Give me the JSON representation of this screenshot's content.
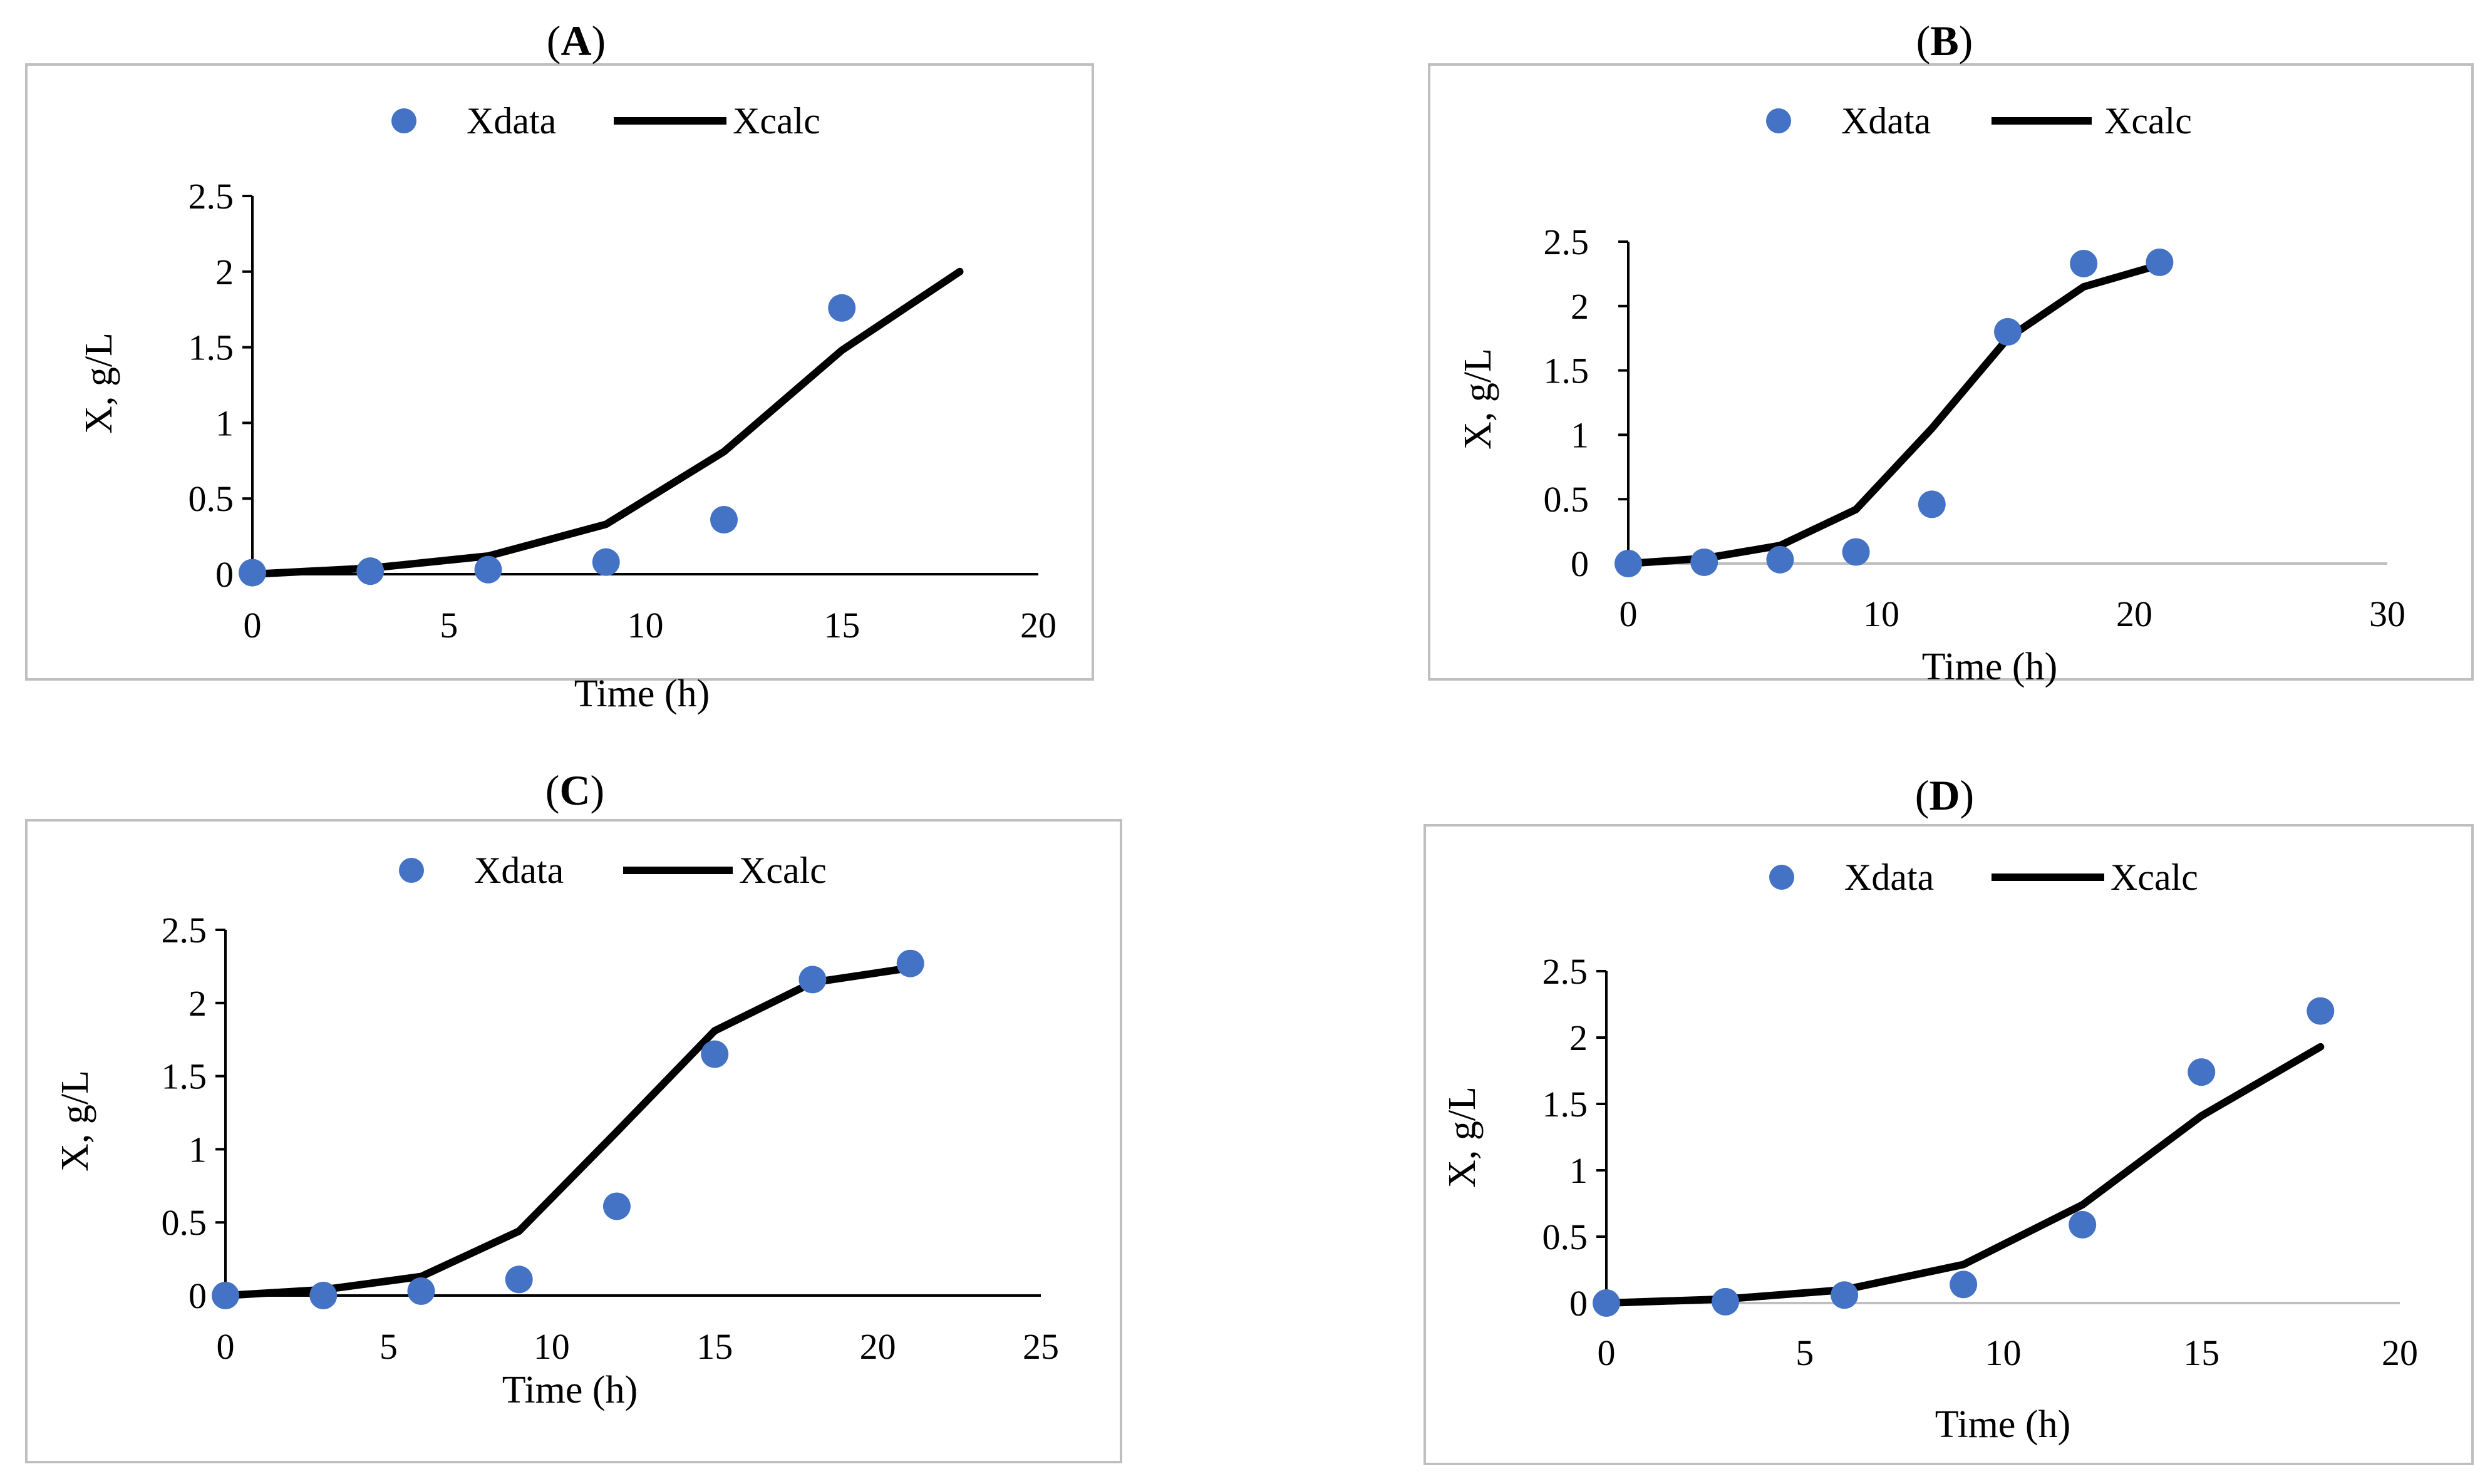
{
  "colors": {
    "data": "#4472C4",
    "calc": "#000000",
    "frame": "#bfbfbf",
    "axis": "#000000",
    "tick": "#000000",
    "text": "#000000",
    "secondary_axis": "#bfbfbf"
  },
  "chart_data": [
    {
      "panel": "A",
      "type": "line",
      "title_letter": "A",
      "legend": {
        "data": "Xdata",
        "calc": "Xcalc"
      },
      "xlabel": "Time (h)",
      "ylabel": "X, g/L",
      "xlim": [
        0,
        20
      ],
      "ylim": [
        0,
        2.5
      ],
      "xticks": [
        "0",
        "5",
        "10",
        "15",
        "20"
      ],
      "yticks": [
        "0",
        "0.5",
        "1",
        "1.5",
        "2",
        "2.5"
      ],
      "xdata": [
        0,
        3,
        6,
        9,
        12,
        15
      ],
      "ydata": [
        0.01,
        0.02,
        0.03,
        0.08,
        0.36,
        1.76
      ],
      "xcalc": [
        0,
        3,
        6,
        9,
        12,
        15,
        18
      ],
      "ycalc": [
        0.0,
        0.04,
        0.12,
        0.33,
        0.81,
        1.48,
        2.0
      ]
    },
    {
      "panel": "B",
      "type": "line",
      "title_letter": "B",
      "legend": {
        "data": "Xdata",
        "calc": "Xcalc"
      },
      "xlabel": "Time (h)",
      "ylabel": "X, g/L",
      "xlim": [
        0,
        30
      ],
      "ylim": [
        0,
        2.5
      ],
      "xticks": [
        "0",
        "10",
        "20",
        "30"
      ],
      "yticks": [
        "0",
        "0.5",
        "1",
        "1.5",
        "2",
        "2.5"
      ],
      "xdata": [
        0,
        3,
        6,
        9,
        12,
        15,
        18,
        21
      ],
      "ydata": [
        0.0,
        0.01,
        0.03,
        0.09,
        0.46,
        1.8,
        2.33,
        2.34
      ],
      "xcalc": [
        0,
        3,
        6,
        9,
        12,
        15,
        18,
        21
      ],
      "ycalc": [
        0.0,
        0.04,
        0.14,
        0.42,
        1.05,
        1.75,
        2.15,
        2.32
      ]
    },
    {
      "panel": "C",
      "type": "line",
      "title_letter": "C",
      "legend": {
        "data": "Xdata",
        "calc": "Xcalc"
      },
      "xlabel": "Time (h)",
      "ylabel": "X, g/L",
      "xlim": [
        0,
        25
      ],
      "ylim": [
        0,
        2.5
      ],
      "xticks": [
        "0",
        "5",
        "10",
        "15",
        "20",
        "25"
      ],
      "yticks": [
        "0",
        "0.5",
        "1",
        "1.5",
        "2",
        "2.5"
      ],
      "xdata": [
        0,
        3,
        6,
        9,
        12,
        15,
        18,
        21
      ],
      "ydata": [
        0.0,
        0.0,
        0.03,
        0.11,
        0.61,
        1.65,
        2.16,
        2.27
      ],
      "xcalc": [
        0,
        3,
        6,
        9,
        12,
        15,
        18,
        21
      ],
      "ycalc": [
        0.0,
        0.04,
        0.13,
        0.44,
        1.12,
        1.81,
        2.14,
        2.24
      ]
    },
    {
      "panel": "D",
      "type": "line",
      "title_letter": "D",
      "legend": {
        "data": "Xdata",
        "calc": "Xcalc"
      },
      "xlabel": "Time (h)",
      "ylabel": "X, g/L",
      "xlim": [
        0,
        20
      ],
      "ylim": [
        0,
        2.5
      ],
      "xticks": [
        "0",
        "5",
        "10",
        "15",
        "20"
      ],
      "yticks": [
        "0",
        "0.5",
        "1",
        "1.5",
        "2",
        "2.5"
      ],
      "xdata": [
        0,
        3,
        6,
        9,
        12,
        15,
        18
      ],
      "ydata": [
        0.0,
        0.01,
        0.06,
        0.14,
        0.59,
        1.74,
        2.2
      ],
      "xcalc": [
        0,
        3,
        6,
        9,
        12,
        15,
        18
      ],
      "ycalc": [
        0.0,
        0.03,
        0.1,
        0.29,
        0.74,
        1.41,
        1.93
      ]
    }
  ]
}
